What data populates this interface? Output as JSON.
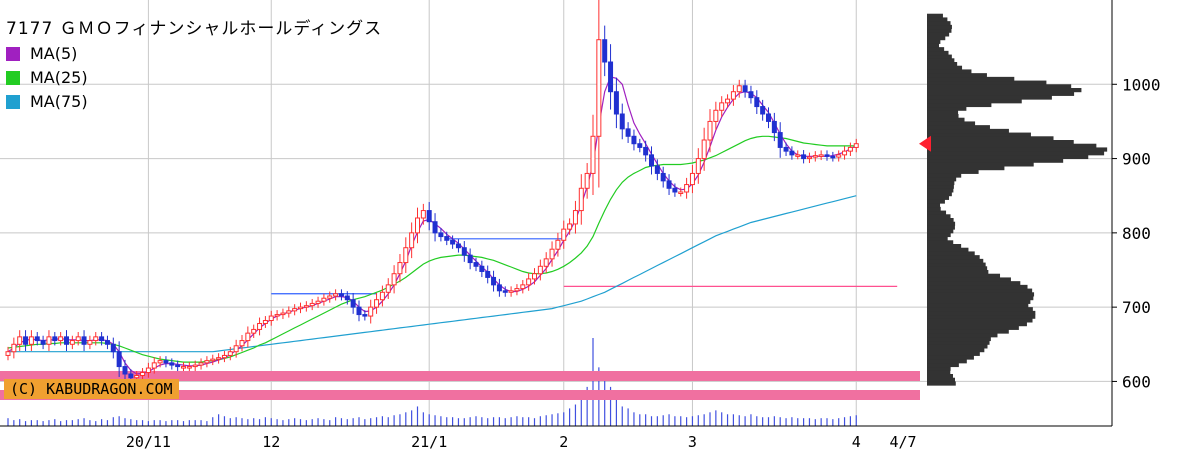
{
  "chart_data": {
    "type": "candlestick",
    "title": "7177 ＧＭＯフィナンシャルホールディングス",
    "credit": "(C) KABUDRAGON.COM",
    "legend": [
      {
        "label": "MA(5)",
        "color": "#a020c0"
      },
      {
        "label": "MA(25)",
        "color": "#22cc22"
      },
      {
        "label": "MA(75)",
        "color": "#20a0d0"
      }
    ],
    "y_ticks": [
      600,
      700,
      800,
      900,
      1000
    ],
    "ylim": [
      540,
      1100
    ],
    "x_labels": [
      {
        "label": "20/11",
        "index": 24
      },
      {
        "label": "12",
        "index": 45
      },
      {
        "label": "21/1",
        "index": 72
      },
      {
        "label": "2",
        "index": 95
      },
      {
        "label": "3",
        "index": 117
      },
      {
        "label": "4",
        "index": 145
      },
      {
        "label": "4/7",
        "index": 153
      }
    ],
    "close": [
      640,
      650,
      660,
      650,
      660,
      655,
      650,
      660,
      655,
      660,
      650,
      655,
      660,
      650,
      655,
      660,
      655,
      650,
      640,
      620,
      610,
      605,
      608,
      612,
      618,
      625,
      628,
      625,
      622,
      620,
      620,
      620,
      622,
      625,
      628,
      630,
      632,
      635,
      640,
      648,
      655,
      665,
      670,
      678,
      682,
      688,
      690,
      692,
      695,
      698,
      700,
      702,
      705,
      708,
      712,
      715,
      718,
      715,
      710,
      700,
      690,
      688,
      700,
      710,
      720,
      730,
      745,
      760,
      780,
      800,
      820,
      830,
      815,
      800,
      795,
      790,
      785,
      780,
      770,
      760,
      755,
      748,
      740,
      730,
      722,
      720,
      722,
      725,
      730,
      738,
      745,
      755,
      765,
      778,
      790,
      805,
      812,
      830,
      860,
      880,
      930,
      1060,
      1030,
      990,
      960,
      940,
      930,
      920,
      915,
      905,
      890,
      880,
      870,
      860,
      855,
      855,
      865,
      880,
      900,
      925,
      950,
      965,
      975,
      980,
      990,
      998,
      990,
      982,
      970,
      960,
      950,
      935,
      915,
      910,
      905,
      905,
      900,
      902,
      904,
      905,
      903,
      902,
      905,
      910,
      915,
      920
    ],
    "ma5": [
      640,
      645,
      652,
      655,
      657,
      656,
      655,
      656,
      656,
      658,
      656,
      656,
      656,
      655,
      655,
      656,
      656,
      655,
      650,
      640,
      625,
      615,
      610,
      611,
      613,
      618,
      622,
      624,
      624,
      623,
      622,
      621,
      621,
      622,
      624,
      626,
      629,
      632,
      636,
      642,
      648,
      656,
      664,
      672,
      678,
      684,
      688,
      691,
      693,
      696,
      698,
      700,
      702,
      705,
      708,
      711,
      714,
      714,
      713,
      708,
      700,
      694,
      695,
      700,
      708,
      718,
      730,
      745,
      762,
      783,
      801,
      816,
      818,
      812,
      806,
      798,
      792,
      786,
      778,
      770,
      762,
      754,
      747,
      738,
      730,
      724,
      721,
      721,
      724,
      728,
      734,
      743,
      752,
      764,
      776,
      790,
      802,
      817,
      838,
      862,
      892,
      944,
      990,
      1010,
      1008,
      1000,
      972,
      948,
      933,
      920,
      906,
      893,
      880,
      870,
      862,
      858,
      859,
      866,
      878,
      895,
      916,
      938,
      956,
      969,
      980,
      988,
      990,
      988,
      982,
      972,
      962,
      948,
      933,
      920,
      910,
      905,
      903,
      903,
      903,
      903,
      903,
      904,
      906,
      909,
      913,
      917
    ],
    "ma25": [
      645,
      646,
      647,
      648,
      649,
      650,
      650,
      651,
      651,
      652,
      652,
      652,
      652,
      652,
      652,
      652,
      652,
      651,
      650,
      648,
      645,
      642,
      639,
      636,
      634,
      632,
      630,
      629,
      628,
      627,
      626,
      626,
      626,
      626,
      627,
      628,
      629,
      631,
      633,
      636,
      639,
      642,
      645,
      649,
      652,
      656,
      660,
      664,
      668,
      672,
      676,
      680,
      684,
      688,
      692,
      696,
      700,
      704,
      707,
      710,
      712,
      714,
      717,
      720,
      723,
      727,
      731,
      735,
      740,
      746,
      752,
      758,
      762,
      765,
      767,
      768,
      769,
      770,
      770,
      769,
      768,
      767,
      765,
      763,
      760,
      757,
      754,
      751,
      748,
      746,
      745,
      745,
      746,
      748,
      751,
      755,
      760,
      766,
      773,
      782,
      795,
      813,
      830,
      845,
      858,
      868,
      875,
      880,
      884,
      888,
      890,
      891,
      892,
      892,
      892,
      892,
      893,
      894,
      896,
      898,
      901,
      904,
      908,
      912,
      916,
      920,
      924,
      927,
      929,
      930,
      930,
      929,
      928,
      927,
      925,
      923,
      921,
      920,
      919,
      918,
      917,
      917,
      917,
      917,
      917,
      917
    ],
    "ma75": [
      640,
      640,
      640,
      640,
      640,
      640,
      640,
      640,
      640,
      640,
      640,
      640,
      640,
      640,
      640,
      640,
      640,
      640,
      640,
      640,
      640,
      640,
      640,
      640,
      640,
      640,
      640,
      640,
      640,
      640,
      640,
      640,
      640,
      640,
      640,
      640,
      641,
      642,
      643,
      644,
      645,
      646,
      647,
      648,
      649,
      650,
      651,
      652,
      653,
      654,
      655,
      656,
      657,
      658,
      659,
      660,
      661,
      662,
      663,
      664,
      665,
      666,
      667,
      668,
      669,
      670,
      671,
      672,
      673,
      674,
      675,
      676,
      677,
      678,
      679,
      680,
      681,
      682,
      683,
      684,
      685,
      686,
      687,
      688,
      689,
      690,
      691,
      692,
      693,
      694,
      695,
      696,
      697,
      698,
      700,
      702,
      704,
      706,
      708,
      711,
      714,
      717,
      720,
      724,
      728,
      732,
      736,
      740,
      744,
      748,
      752,
      756,
      760,
      764,
      768,
      772,
      776,
      780,
      784,
      788,
      792,
      796,
      799,
      802,
      805,
      808,
      811,
      814,
      816,
      818,
      820,
      822,
      824,
      826,
      828,
      830,
      832,
      834,
      836,
      838,
      840,
      842,
      844,
      846,
      848,
      850
    ],
    "volume": [
      8,
      6,
      7,
      5,
      6,
      6,
      5,
      6,
      7,
      5,
      6,
      6,
      7,
      8,
      6,
      5,
      7,
      6,
      9,
      10,
      8,
      7,
      6,
      6,
      5,
      6,
      6,
      5,
      6,
      6,
      5,
      6,
      6,
      6,
      5,
      9,
      12,
      10,
      8,
      9,
      8,
      7,
      8,
      7,
      9,
      8,
      7,
      6,
      7,
      8,
      7,
      6,
      7,
      8,
      7,
      6,
      9,
      8,
      7,
      8,
      9,
      7,
      8,
      9,
      10,
      9,
      11,
      12,
      14,
      16,
      20,
      14,
      12,
      11,
      10,
      9,
      9,
      8,
      8,
      9,
      10,
      9,
      8,
      9,
      9,
      8,
      9,
      10,
      9,
      9,
      8,
      10,
      11,
      12,
      13,
      14,
      18,
      22,
      30,
      40,
      90,
      60,
      50,
      40,
      30,
      20,
      18,
      14,
      12,
      12,
      10,
      10,
      11,
      12,
      10,
      10,
      9,
      10,
      11,
      12,
      14,
      16,
      14,
      12,
      12,
      11,
      10,
      12,
      10,
      9,
      9,
      10,
      9,
      8,
      9,
      8,
      8,
      8,
      7,
      8,
      8,
      7,
      8,
      9,
      10,
      11
    ],
    "support_lines": [
      {
        "value": 792,
        "from": 75,
        "to": 95,
        "color": "#3060ff"
      },
      {
        "value": 718,
        "from": 45,
        "to": 63,
        "color": "#3060ff"
      },
      {
        "value": 728,
        "from": 95,
        "to": 152,
        "color": "#ff5090"
      }
    ],
    "profile_note_price": 920,
    "volume_bands_color": "#f070a0"
  }
}
